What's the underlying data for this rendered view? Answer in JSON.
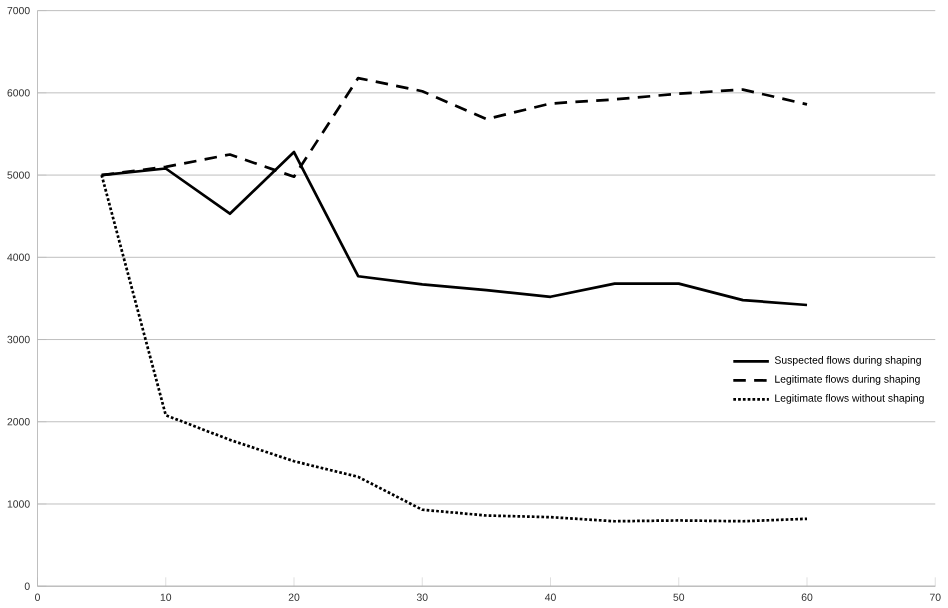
{
  "chart_data": {
    "type": "line",
    "x": [
      5,
      10,
      15,
      20,
      25,
      30,
      35,
      40,
      45,
      50,
      55,
      60
    ],
    "series": [
      {
        "name": "Suspected flows during shaping",
        "color": "#000000",
        "line_style": "solid",
        "values": [
          5000,
          5080,
          4530,
          5280,
          3770,
          3670,
          3600,
          3520,
          3680,
          3680,
          3480,
          3420
        ]
      },
      {
        "name": "Legitimate flows during shaping",
        "color": "#000000",
        "line_style": "dashed",
        "values": [
          5000,
          5100,
          5250,
          4980,
          6180,
          6020,
          5680,
          5870,
          5920,
          5990,
          6040,
          5860
        ]
      },
      {
        "name": "Legitimate flows without shaping",
        "color": "#000000",
        "line_style": "dotted",
        "values": [
          5000,
          2080,
          1780,
          1520,
          1330,
          930,
          860,
          840,
          790,
          800,
          790,
          820
        ]
      }
    ],
    "xlim": [
      0,
      70
    ],
    "xticks": [
      0,
      10,
      20,
      30,
      40,
      50,
      60,
      70
    ],
    "ylim": [
      0,
      7000
    ],
    "yticks": [
      0,
      1000,
      2000,
      3000,
      4000,
      5000,
      6000,
      7000
    ],
    "grid": "y",
    "legend": "right",
    "marker": "none"
  }
}
